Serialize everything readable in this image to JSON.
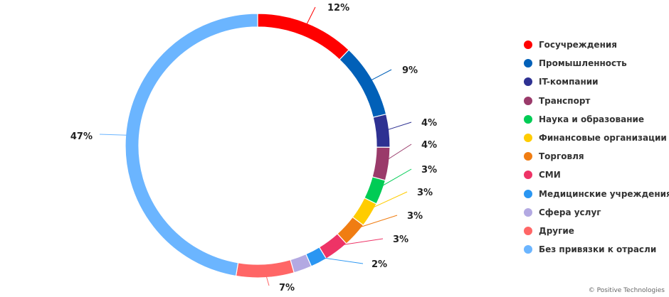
{
  "chart_data": {
    "type": "pie",
    "donut": true,
    "categories": [
      "Госучреждения",
      "Промышленность",
      "IT-компании",
      "Транспорт",
      "Наука и образование",
      "Финансовые организации",
      "Торговля",
      "СМИ",
      "Медицинские учреждения",
      "Сфера услуг",
      "Другие",
      "Без привязки к отрасли"
    ],
    "values": [
      12,
      9,
      4,
      4,
      3,
      3,
      3,
      3,
      2,
      2.2,
      7,
      47
    ],
    "labels": [
      "12%",
      "9%",
      "4%",
      "4%",
      "3%",
      "3%",
      "3%",
      "3%",
      "2%",
      "",
      "7%",
      "47%"
    ],
    "colors": [
      "#ff0000",
      "#0160b8",
      "#2e3192",
      "#9a3a6a",
      "#00cc55",
      "#ffcc00",
      "#f07d12",
      "#ee3366",
      "#2a96f2",
      "#b3a9e2",
      "#ff6666",
      "#6bb5ff"
    ],
    "legend_position": "right"
  },
  "credit": "© Positive Technologies"
}
